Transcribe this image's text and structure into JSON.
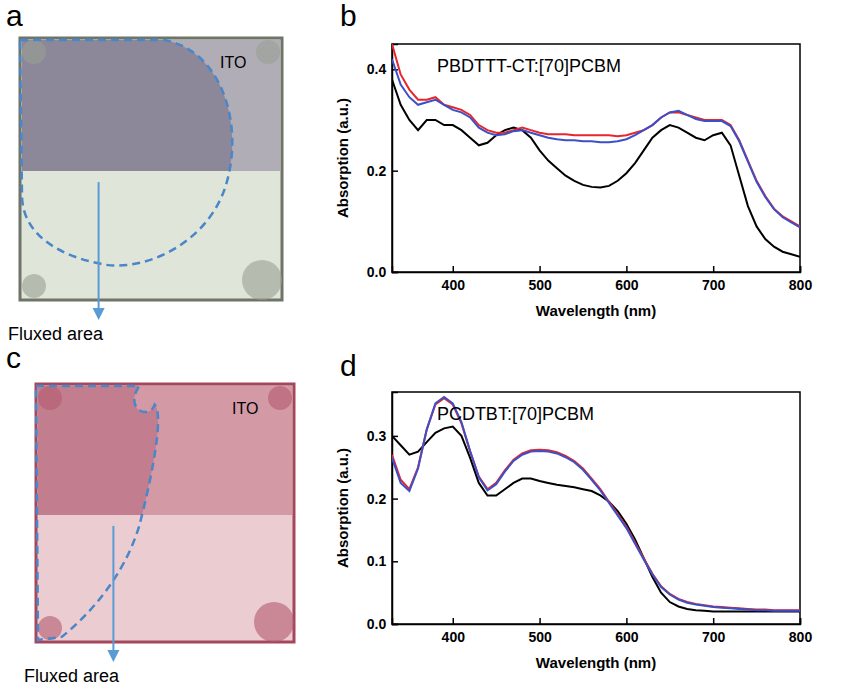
{
  "panel_letters": [
    "a",
    "b",
    "c",
    "d"
  ],
  "photos": [
    {
      "label": "ITO",
      "caption": "Fluxed area"
    },
    {
      "label": "ITO",
      "caption": "Fluxed area"
    }
  ],
  "chart_data": [
    {
      "type": "line",
      "annotation": "PBDTTT-CT:[70]PCBM",
      "x_label": "Wavelength (nm)",
      "y_label": "Absorption (a.u.)",
      "x": [
        330,
        340,
        350,
        360,
        370,
        380,
        390,
        400,
        410,
        420,
        430,
        440,
        450,
        460,
        470,
        480,
        490,
        500,
        510,
        520,
        530,
        540,
        550,
        560,
        570,
        580,
        590,
        600,
        610,
        620,
        630,
        640,
        650,
        660,
        670,
        680,
        690,
        700,
        710,
        720,
        730,
        740,
        750,
        760,
        770,
        780,
        790,
        800
      ],
      "xlim": [
        330,
        800
      ],
      "xticks": [
        400,
        500,
        600,
        700,
        800
      ],
      "ylim": [
        0,
        0.45
      ],
      "yticks": [
        {
          "value": 0,
          "label": "0.0"
        },
        {
          "value": 0.2,
          "label": "0.2"
        },
        {
          "value": 0.4,
          "label": "0.4"
        }
      ],
      "series": [
        {
          "color": "#000000",
          "values": [
            0.38,
            0.33,
            0.3,
            0.28,
            0.3,
            0.3,
            0.29,
            0.29,
            0.28,
            0.265,
            0.25,
            0.255,
            0.27,
            0.28,
            0.285,
            0.28,
            0.265,
            0.24,
            0.22,
            0.205,
            0.19,
            0.18,
            0.172,
            0.168,
            0.167,
            0.17,
            0.18,
            0.195,
            0.215,
            0.24,
            0.265,
            0.28,
            0.29,
            0.285,
            0.275,
            0.265,
            0.26,
            0.27,
            0.275,
            0.25,
            0.19,
            0.13,
            0.09,
            0.065,
            0.05,
            0.04,
            0.035,
            0.03
          ]
        },
        {
          "color": "#e8262b",
          "values": [
            0.45,
            0.39,
            0.36,
            0.34,
            0.34,
            0.345,
            0.33,
            0.325,
            0.32,
            0.31,
            0.29,
            0.28,
            0.275,
            0.275,
            0.28,
            0.285,
            0.28,
            0.275,
            0.272,
            0.272,
            0.272,
            0.27,
            0.27,
            0.27,
            0.27,
            0.27,
            0.268,
            0.27,
            0.275,
            0.28,
            0.29,
            0.305,
            0.315,
            0.315,
            0.31,
            0.305,
            0.3,
            0.3,
            0.3,
            0.29,
            0.26,
            0.22,
            0.18,
            0.15,
            0.125,
            0.11,
            0.1,
            0.09
          ]
        },
        {
          "color": "#3b50c8",
          "values": [
            0.42,
            0.37,
            0.345,
            0.33,
            0.335,
            0.34,
            0.33,
            0.32,
            0.315,
            0.305,
            0.285,
            0.275,
            0.27,
            0.272,
            0.278,
            0.28,
            0.275,
            0.27,
            0.265,
            0.262,
            0.26,
            0.26,
            0.258,
            0.258,
            0.256,
            0.256,
            0.258,
            0.262,
            0.27,
            0.28,
            0.29,
            0.305,
            0.315,
            0.318,
            0.31,
            0.302,
            0.298,
            0.298,
            0.298,
            0.288,
            0.258,
            0.218,
            0.178,
            0.148,
            0.124,
            0.108,
            0.098,
            0.088
          ]
        }
      ]
    },
    {
      "type": "line",
      "annotation": "PCDTBT:[70]PCBM",
      "x_label": "Wavelength (nm)",
      "y_label": "Absorption (a.u.)",
      "x": [
        330,
        340,
        350,
        360,
        370,
        380,
        390,
        400,
        410,
        420,
        430,
        440,
        450,
        460,
        470,
        480,
        490,
        500,
        510,
        520,
        530,
        540,
        550,
        560,
        570,
        580,
        590,
        600,
        610,
        620,
        630,
        640,
        650,
        660,
        670,
        680,
        690,
        700,
        710,
        720,
        730,
        740,
        750,
        760,
        770,
        780,
        790,
        800
      ],
      "xlim": [
        330,
        800
      ],
      "xticks": [
        400,
        500,
        600,
        700,
        800
      ],
      "ylim": [
        0,
        0.37
      ],
      "yticks": [
        {
          "value": 0,
          "label": "0.0"
        },
        {
          "value": 0.1,
          "label": "0.1"
        },
        {
          "value": 0.2,
          "label": "0.2"
        },
        {
          "value": 0.3,
          "label": "0.3"
        }
      ],
      "series": [
        {
          "color": "#000000",
          "values": [
            0.3,
            0.285,
            0.27,
            0.275,
            0.29,
            0.305,
            0.312,
            0.315,
            0.3,
            0.265,
            0.225,
            0.205,
            0.205,
            0.215,
            0.225,
            0.232,
            0.232,
            0.228,
            0.225,
            0.222,
            0.22,
            0.218,
            0.215,
            0.212,
            0.205,
            0.195,
            0.18,
            0.16,
            0.135,
            0.105,
            0.075,
            0.05,
            0.035,
            0.028,
            0.024,
            0.022,
            0.021,
            0.02,
            0.02,
            0.02,
            0.02,
            0.02,
            0.02,
            0.02,
            0.02,
            0.02,
            0.02,
            0.02
          ]
        },
        {
          "color": "#e8262b",
          "values": [
            0.27,
            0.23,
            0.215,
            0.25,
            0.31,
            0.35,
            0.36,
            0.35,
            0.32,
            0.275,
            0.235,
            0.215,
            0.225,
            0.245,
            0.262,
            0.272,
            0.277,
            0.278,
            0.277,
            0.274,
            0.268,
            0.26,
            0.248,
            0.232,
            0.215,
            0.195,
            0.175,
            0.155,
            0.13,
            0.105,
            0.08,
            0.06,
            0.048,
            0.04,
            0.035,
            0.032,
            0.03,
            0.028,
            0.027,
            0.026,
            0.025,
            0.024,
            0.023,
            0.023,
            0.022,
            0.022,
            0.022,
            0.022
          ]
        },
        {
          "color": "#3b50c8",
          "values": [
            0.265,
            0.225,
            0.212,
            0.248,
            0.31,
            0.352,
            0.362,
            0.352,
            0.322,
            0.276,
            0.234,
            0.213,
            0.223,
            0.243,
            0.26,
            0.27,
            0.275,
            0.276,
            0.275,
            0.272,
            0.266,
            0.258,
            0.246,
            0.23,
            0.213,
            0.193,
            0.173,
            0.153,
            0.128,
            0.103,
            0.079,
            0.059,
            0.047,
            0.039,
            0.034,
            0.031,
            0.029,
            0.027,
            0.026,
            0.025,
            0.024,
            0.023,
            0.022,
            0.022,
            0.021,
            0.021,
            0.021,
            0.021
          ]
        }
      ]
    }
  ]
}
